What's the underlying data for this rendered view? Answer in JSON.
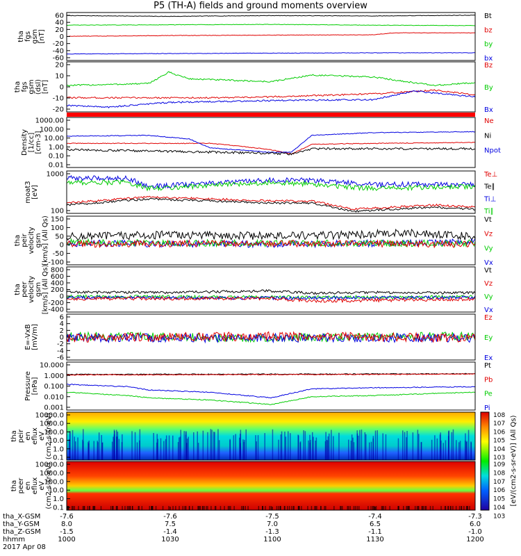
{
  "title": "P5 (TH-A) fields and ground moments overview",
  "footer": {
    "rows": [
      "tha_X-GSM",
      "tha_Y-GSM",
      "tha_Z-GSM",
      "hhmm",
      "2017 Apr 08"
    ],
    "values": [
      [
        "-7.6",
        "-7.6",
        "-7.5",
        "-7.4",
        "-7.3"
      ],
      [
        "8.0",
        "7.5",
        "7.0",
        "6.5",
        "6.0"
      ],
      [
        "-1.5",
        "-1.4",
        "-1.3",
        "-1.1",
        "-1.0"
      ],
      [
        "1000",
        "1030",
        "1100",
        "1130",
        "1200"
      ]
    ]
  },
  "colorbar_label": "[eV/(cm2-s-sr-eV)] (All Qs)",
  "chart_data": [
    {
      "type": "line",
      "ylabel": [
        "tha",
        "fgs",
        "gsm",
        "[nT]"
      ],
      "yticks": [
        "60",
        "40",
        "20",
        "0",
        "-20",
        "-40",
        "-60"
      ],
      "legend": [
        {
          "name": "Bt",
          "color": "#000000"
        },
        {
          "name": "bz",
          "color": "#e00000"
        },
        {
          "name": "by",
          "color": "#00cc00"
        },
        {
          "name": "bx",
          "color": "#0000e0"
        }
      ],
      "ylim": [
        -60,
        65
      ],
      "series": [
        {
          "name": "Bt",
          "color": "#000000",
          "x": [
            0,
            0.25,
            0.5,
            0.75,
            1
          ],
          "y": [
            57,
            55,
            57,
            56,
            58
          ]
        },
        {
          "name": "by",
          "color": "#00cc00",
          "x": [
            0,
            0.25,
            0.5,
            0.75,
            1
          ],
          "y": [
            32,
            33,
            34,
            32,
            31
          ]
        },
        {
          "name": "bz",
          "color": "#e00000",
          "x": [
            0,
            0.25,
            0.5,
            0.75,
            0.8,
            1
          ],
          "y": [
            3,
            5,
            6,
            7,
            12,
            12
          ]
        },
        {
          "name": "bx",
          "color": "#0000e0",
          "x": [
            0,
            0.25,
            0.5,
            0.75,
            1
          ],
          "y": [
            -43,
            -42,
            -41,
            -40,
            -40
          ]
        }
      ]
    },
    {
      "type": "line",
      "ylabel": [
        "tha",
        "fgs",
        "gsm",
        "(dsl)",
        "[nT]"
      ],
      "yticks": [
        "20",
        "10",
        "0",
        "-10",
        "-20"
      ],
      "legend": [
        {
          "name": "Bz",
          "color": "#e00000"
        },
        {
          "name": "By",
          "color": "#00cc00"
        },
        {
          "name": "Bx",
          "color": "#0000e0"
        }
      ],
      "ylim": [
        -25,
        28
      ],
      "series": [
        {
          "name": "By",
          "color": "#00cc00",
          "x": [
            0,
            0.2,
            0.25,
            0.3,
            0.5,
            0.6,
            0.75,
            0.9,
            1
          ],
          "y": [
            3,
            5,
            17,
            10,
            7,
            14,
            12,
            3,
            6
          ]
        },
        {
          "name": "Bz",
          "color": "#e00000",
          "x": [
            0,
            0.25,
            0.4,
            0.5,
            0.75,
            0.9,
            1
          ],
          "y": [
            -10,
            -10,
            -10,
            -9,
            -6,
            -2,
            -7
          ]
        },
        {
          "name": "Bx",
          "color": "#0000e0",
          "x": [
            0,
            0.1,
            0.25,
            0.5,
            0.75,
            0.85,
            1
          ],
          "y": [
            -18,
            -20,
            -15,
            -13,
            -12,
            -3,
            -9
          ]
        }
      ]
    },
    {
      "type": "line",
      "ylabel": [
        "Density",
        "[1/cc]",
        "[cm-3]"
      ],
      "yticks": [
        "1000.00",
        "100.00",
        "10.00",
        "1.00",
        "0.10",
        "0.01"
      ],
      "legend": [
        {
          "name": "Ne",
          "color": "#e00000"
        },
        {
          "name": "Ni",
          "color": "#000000"
        },
        {
          "name": "Npot",
          "color": "#0000e0"
        },
        {
          "name": "",
          "color": "#000000"
        }
      ],
      "ylim": [
        -2.3,
        3.3
      ],
      "log": true,
      "series": [
        {
          "name": "Ne",
          "color": "#e00000",
          "x": [
            0,
            0.35,
            0.4,
            0.5,
            0.55,
            0.6,
            0.75,
            1
          ],
          "y": [
            0.4,
            0.4,
            0.2,
            -0.3,
            -0.8,
            0.3,
            0.4,
            0.5
          ]
        },
        {
          "name": "Npot",
          "color": "#0000e0",
          "x": [
            0,
            0.2,
            0.3,
            0.35,
            0.5,
            0.55,
            0.6,
            0.75,
            1
          ],
          "y": [
            1.2,
            1.3,
            0.9,
            -0.1,
            -0.6,
            -0.6,
            1.3,
            1.6,
            1.7
          ]
        },
        {
          "name": "Ni",
          "color": "#000000",
          "x": [
            0,
            0.25,
            0.5,
            0.55,
            0.6,
            0.75,
            1
          ],
          "y": [
            -0.3,
            -0.5,
            -0.7,
            -0.8,
            -0.2,
            -0.2,
            -0.2
          ]
        }
      ]
    },
    {
      "type": "line",
      "ylabel": [
        "moat3",
        "[eV]"
      ],
      "yticks": [
        "1000",
        "100"
      ],
      "legend": [
        {
          "name": "Te⊥",
          "color": "#e00000"
        },
        {
          "name": "Te∥",
          "color": "#000000"
        },
        {
          "name": "Ti⊥",
          "color": "#0000e0"
        },
        {
          "name": "Ti∥",
          "color": "#00cc00"
        }
      ],
      "ylim": [
        1.7,
        3.75
      ],
      "log": true,
      "series": [
        {
          "name": "Ti⊥",
          "color": "#0000e0",
          "x": [
            0,
            0.15,
            0.2,
            0.5,
            0.6,
            0.75,
            1
          ],
          "y": [
            3.4,
            3.4,
            3.0,
            3.3,
            3.3,
            3.1,
            3.1
          ]
        },
        {
          "name": "Ti∥",
          "color": "#00cc00",
          "x": [
            0,
            0.15,
            0.2,
            0.5,
            0.6,
            0.75,
            1
          ],
          "y": [
            3.2,
            3.2,
            2.9,
            3.2,
            3.1,
            2.9,
            3.0
          ]
        },
        {
          "name": "Te⊥",
          "color": "#e00000",
          "x": [
            0,
            0.2,
            0.5,
            0.6,
            0.7,
            0.9,
            1
          ],
          "y": [
            2.2,
            2.5,
            2.3,
            2.3,
            1.9,
            2.1,
            2.0
          ]
        },
        {
          "name": "Te∥",
          "color": "#000000",
          "x": [
            0,
            0.2,
            0.5,
            0.6,
            0.7,
            0.9,
            1
          ],
          "y": [
            2.1,
            2.4,
            2.2,
            2.2,
            1.8,
            2.0,
            1.9
          ]
        }
      ]
    },
    {
      "type": "line",
      "ylabel": [
        "tha",
        "peir",
        "velocity",
        "gsm",
        "[km/s] (All Qs)"
      ],
      "yticks": [
        "150",
        "100",
        "50",
        "0",
        "-50",
        "-100"
      ],
      "legend": [
        {
          "name": "Vt",
          "color": "#000000"
        },
        {
          "name": "Vz",
          "color": "#e00000"
        },
        {
          "name": "Vy",
          "color": "#00cc00"
        },
        {
          "name": "Vx",
          "color": "#0000e0"
        }
      ],
      "ylim": [
        -110,
        150
      ],
      "series": [
        {
          "name": "Vt",
          "color": "#000000",
          "x": [
            0,
            0.25,
            0.5,
            0.6,
            0.85,
            1
          ],
          "y": [
            40,
            50,
            45,
            45,
            60,
            40
          ]
        },
        {
          "name": "Vx",
          "color": "#0000e0",
          "x": [
            0,
            0.5,
            1
          ],
          "y": [
            5,
            0,
            10
          ]
        },
        {
          "name": "Vy",
          "color": "#00cc00",
          "x": [
            0,
            0.5,
            1
          ],
          "y": [
            10,
            5,
            5
          ]
        },
        {
          "name": "Vz",
          "color": "#e00000",
          "x": [
            0,
            0.5,
            1
          ],
          "y": [
            0,
            5,
            0
          ]
        }
      ]
    },
    {
      "type": "line",
      "ylabel": [
        "tha",
        "peer",
        "velocity",
        "gsm",
        "[km/s] (All Qs)"
      ],
      "yticks": [
        "800",
        "600",
        "400",
        "200",
        "0",
        "-200",
        "-400"
      ],
      "legend": [
        {
          "name": "Vt",
          "color": "#000000"
        },
        {
          "name": "Vz",
          "color": "#e00000"
        },
        {
          "name": "Vy",
          "color": "#00cc00"
        },
        {
          "name": "Vx",
          "color": "#0000e0"
        }
      ],
      "ylim": [
        -420,
        800
      ],
      "series": [
        {
          "name": "Vt",
          "color": "#000000",
          "x": [
            0,
            0.25,
            0.5,
            0.6,
            0.75,
            1
          ],
          "y": [
            120,
            110,
            150,
            90,
            110,
            100
          ]
        },
        {
          "name": "Vy",
          "color": "#00cc00",
          "x": [
            0,
            0.5,
            1
          ],
          "y": [
            0,
            -20,
            -10
          ]
        },
        {
          "name": "Vx",
          "color": "#0000e0",
          "x": [
            0,
            0.5,
            1
          ],
          "y": [
            -30,
            -40,
            -30
          ]
        },
        {
          "name": "Vz",
          "color": "#e00000",
          "x": [
            0,
            0.5,
            0.6,
            1
          ],
          "y": [
            -60,
            -50,
            -120,
            -70
          ]
        }
      ]
    },
    {
      "type": "line",
      "ylabel": [
        "E=-VxB",
        "[mV/m]"
      ],
      "yticks": [
        "6",
        "4",
        "2",
        "0",
        "-2",
        "-4",
        "-6"
      ],
      "legend": [
        {
          "name": "Ez",
          "color": "#e00000"
        },
        {
          "name": "Ey",
          "color": "#00cc00"
        },
        {
          "name": "Ex",
          "color": "#0000e0"
        }
      ],
      "ylim": [
        -6.5,
        7
      ],
      "series": [
        {
          "name": "Ey",
          "color": "#00cc00",
          "x": [
            0,
            0.5,
            1
          ],
          "y": [
            0.5,
            0,
            0.5
          ]
        },
        {
          "name": "Ex",
          "color": "#0000e0",
          "x": [
            0,
            0.5,
            1
          ],
          "y": [
            0,
            0,
            0
          ]
        },
        {
          "name": "Ez",
          "color": "#e00000",
          "x": [
            0,
            0.5,
            1
          ],
          "y": [
            0,
            0.5,
            0
          ]
        }
      ]
    },
    {
      "type": "line",
      "ylabel": [
        "Pressure",
        "[nPa]"
      ],
      "yticks": [
        "10.000",
        "1.000",
        "0.100",
        "0.010",
        "0.001"
      ],
      "legend": [
        {
          "name": "Pt",
          "color": "#000000"
        },
        {
          "name": "Pb",
          "color": "#e00000"
        },
        {
          "name": "Pe",
          "color": "#00cc00"
        },
        {
          "name": "Pi",
          "color": "#0000e0"
        }
      ],
      "ylim": [
        -3.1,
        1.2
      ],
      "log": true,
      "series": [
        {
          "name": "Pt",
          "color": "#000000",
          "x": [
            0,
            0.5,
            1
          ],
          "y": [
            0.1,
            0.12,
            0.15
          ]
        },
        {
          "name": "Pb",
          "color": "#e00000",
          "x": [
            0,
            0.5,
            1
          ],
          "y": [
            0.05,
            0.08,
            0.12
          ]
        },
        {
          "name": "Pi",
          "color": "#0000e0",
          "x": [
            0,
            0.15,
            0.2,
            0.35,
            0.5,
            0.6,
            0.75,
            1
          ],
          "y": [
            -0.8,
            -1,
            -1.3,
            -1.5,
            -2,
            -1.2,
            -1.1,
            -1
          ]
        },
        {
          "name": "Pe",
          "color": "#00cc00",
          "x": [
            0,
            0.15,
            0.2,
            0.35,
            0.5,
            0.6,
            0.75,
            1
          ],
          "y": [
            -1.5,
            -1.8,
            -2,
            -2.2,
            -2.6,
            -1.9,
            -1.8,
            -1.5
          ]
        }
      ]
    },
    {
      "type": "heatmap",
      "ylabel": [
        "tha",
        "peir",
        "en",
        "eflux",
        "eV",
        "(cm2-s-sr-eV)"
      ],
      "yticks": [
        "10000.0",
        "1000.0",
        "100.0",
        "10.0",
        "1.0",
        "0.1"
      ],
      "colorbar_ticks": [
        "10^8",
        "10^7",
        "10^6",
        "10^5",
        "10^4",
        "10^3"
      ]
    },
    {
      "type": "heatmap",
      "ylabel": [
        "tha",
        "peer",
        "en",
        "eflux",
        "eV",
        "(cm2-s-sr-eV)"
      ],
      "yticks": [
        "10000.0",
        "1000.0",
        "100.0",
        "10.0",
        "1.0",
        "0.1"
      ],
      "colorbar_ticks": [
        "10^9",
        "10^8",
        "10^7",
        "10^6",
        "10^5",
        "10^4",
        "10^3"
      ]
    }
  ]
}
